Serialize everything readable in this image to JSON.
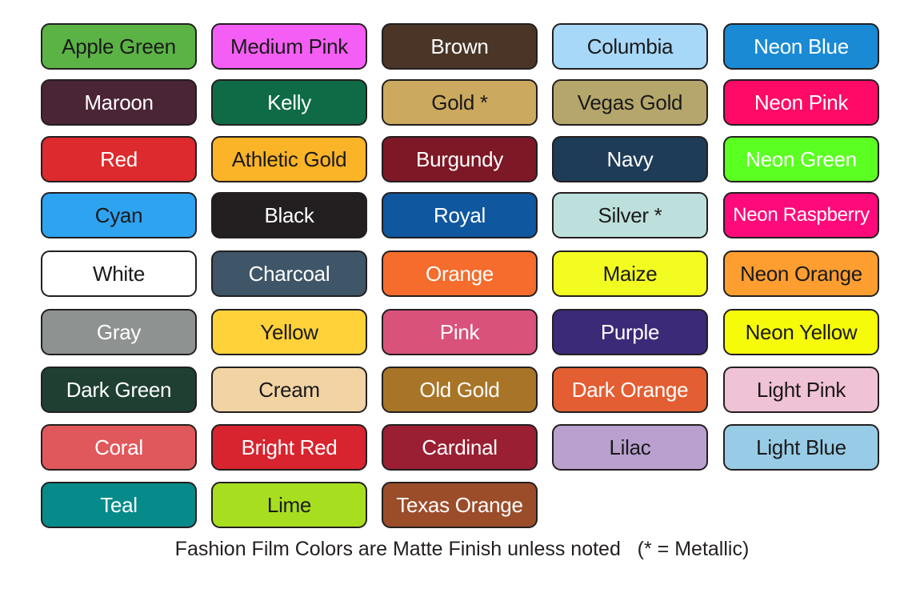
{
  "swatches": [
    {
      "label": "Apple Green",
      "color": "#5bb345",
      "text": "#1a1a1a"
    },
    {
      "label": "Medium Pink",
      "color": "#f55ef5",
      "text": "#1a1a1a"
    },
    {
      "label": "Brown",
      "color": "#4a3527",
      "text": "#ffffff"
    },
    {
      "label": "Columbia",
      "color": "#a7d8f8",
      "text": "#1a1a1a"
    },
    {
      "label": "Neon Blue",
      "color": "#1a8ad4",
      "text": "#ffffff"
    },
    {
      "label": "Maroon",
      "color": "#4a2535",
      "text": "#ffffff"
    },
    {
      "label": "Kelly",
      "color": "#0f6b45",
      "text": "#ffffff"
    },
    {
      "label": "Gold *",
      "color": "#cba95e",
      "text": "#1a1a1a"
    },
    {
      "label": "Vegas Gold",
      "color": "#b5a76c",
      "text": "#1a1a1a"
    },
    {
      "label": "Neon Pink",
      "color": "#ff0a66",
      "text": "#ffffff"
    },
    {
      "label": "Red",
      "color": "#dd2a2e",
      "text": "#ffffff"
    },
    {
      "label": "Athletic Gold",
      "color": "#fbb327",
      "text": "#1a1a1a"
    },
    {
      "label": "Burgundy",
      "color": "#7d1826",
      "text": "#ffffff"
    },
    {
      "label": "Navy",
      "color": "#1e3c58",
      "text": "#ffffff"
    },
    {
      "label": "Neon Green",
      "color": "#5cff22",
      "text": "#ffffff"
    },
    {
      "label": "Cyan",
      "color": "#2ea3f0",
      "text": "#1a1a1a"
    },
    {
      "label": "Black",
      "color": "#231f20",
      "text": "#ffffff"
    },
    {
      "label": "Royal",
      "color": "#0f579e",
      "text": "#ffffff"
    },
    {
      "label": "Silver *",
      "color": "#bde0dc",
      "text": "#1a1a1a"
    },
    {
      "label": "Neon Raspberry",
      "color": "#ff0a7a",
      "text": "#ffffff"
    },
    {
      "label": "White",
      "color": "#ffffff",
      "text": "#1a1a1a"
    },
    {
      "label": "Charcoal",
      "color": "#3e5668",
      "text": "#ffffff"
    },
    {
      "label": "Orange",
      "color": "#f56c2c",
      "text": "#ffffff"
    },
    {
      "label": "Maize",
      "color": "#f3fc20",
      "text": "#1a1a1a"
    },
    {
      "label": "Neon Orange",
      "color": "#ff9e30",
      "text": "#1a1a1a"
    },
    {
      "label": "Gray",
      "color": "#8e9290",
      "text": "#ffffff"
    },
    {
      "label": "Yellow",
      "color": "#ffd23a",
      "text": "#1a1a1a"
    },
    {
      "label": "Pink",
      "color": "#d9527a",
      "text": "#ffffff"
    },
    {
      "label": "Purple",
      "color": "#3a2a78",
      "text": "#ffffff"
    },
    {
      "label": "Neon Yellow",
      "color": "#f6fb0a",
      "text": "#1a1a1a"
    },
    {
      "label": "Dark Green",
      "color": "#1f3f33",
      "text": "#ffffff"
    },
    {
      "label": "Cream",
      "color": "#f2d3a4",
      "text": "#1a1a1a"
    },
    {
      "label": "Old Gold",
      "color": "#a87528",
      "text": "#ffffff"
    },
    {
      "label": "Dark Orange",
      "color": "#e35e32",
      "text": "#ffffff"
    },
    {
      "label": "Light Pink",
      "color": "#f0c2d5",
      "text": "#1a1a1a"
    },
    {
      "label": "Coral",
      "color": "#e0585c",
      "text": "#ffffff"
    },
    {
      "label": "Bright Red",
      "color": "#d8242e",
      "text": "#ffffff"
    },
    {
      "label": "Cardinal",
      "color": "#9a1f32",
      "text": "#ffffff"
    },
    {
      "label": "Lilac",
      "color": "#b9a0ce",
      "text": "#1a1a1a"
    },
    {
      "label": "Light Blue",
      "color": "#98cce6",
      "text": "#1a1a1a"
    },
    {
      "label": "Teal",
      "color": "#078a8a",
      "text": "#ffffff"
    },
    {
      "label": "Lime",
      "color": "#a8de20",
      "text": "#1a1a1a"
    },
    {
      "label": "Texas Orange",
      "color": "#9b4d2a",
      "text": "#ffffff"
    }
  ],
  "footnote": "Fashion Film Colors are Matte Finish unless noted   (* = Metallic)"
}
